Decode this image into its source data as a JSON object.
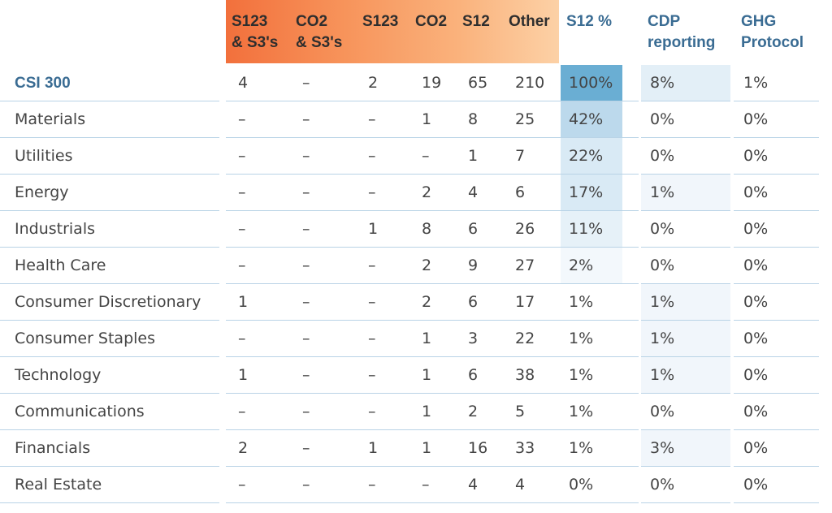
{
  "chart_data": {
    "type": "table",
    "columns": [
      "",
      "S123 & S3's",
      "CO2 & S3's",
      "S123",
      "CO2",
      "S12",
      "Other",
      "S12 %",
      "CDP reporting",
      "GHG Protocol"
    ],
    "header_lines": [
      [
        "S123",
        "& S3's"
      ],
      [
        "CO2",
        "& S3's"
      ],
      [
        "S123"
      ],
      [
        "CO2"
      ],
      [
        "S12"
      ],
      [
        "Other"
      ],
      [
        "S12 %"
      ],
      [
        "CDP",
        "reporting"
      ],
      [
        "GHG",
        "Protocol"
      ]
    ],
    "rows": [
      {
        "label": "CSI 300",
        "values": [
          "4",
          "–",
          "2",
          "19",
          "65",
          "210",
          "100%",
          "8%",
          "1%"
        ],
        "s12_pct": 100,
        "cdp_pct": 8
      },
      {
        "label": "Materials",
        "values": [
          "–",
          "–",
          "–",
          "1",
          "8",
          "25",
          "42%",
          "0%",
          "0%"
        ],
        "s12_pct": 42,
        "cdp_pct": 0
      },
      {
        "label": "Utilities",
        "values": [
          "–",
          "–",
          "–",
          "–",
          "1",
          "7",
          "22%",
          "0%",
          "0%"
        ],
        "s12_pct": 22,
        "cdp_pct": 0
      },
      {
        "label": "Energy",
        "values": [
          "–",
          "–",
          "–",
          "2",
          "4",
          "6",
          "17%",
          "1%",
          "0%"
        ],
        "s12_pct": 17,
        "cdp_pct": 1
      },
      {
        "label": "Industrials",
        "values": [
          "–",
          "–",
          "1",
          "8",
          "6",
          "26",
          "11%",
          "0%",
          "0%"
        ],
        "s12_pct": 11,
        "cdp_pct": 0
      },
      {
        "label": "Health Care",
        "values": [
          "–",
          "–",
          "–",
          "2",
          "9",
          "27",
          "2%",
          "0%",
          "0%"
        ],
        "s12_pct": 2,
        "cdp_pct": 0
      },
      {
        "label": "Consumer Discretionary",
        "values": [
          "1",
          "–",
          "–",
          "2",
          "6",
          "17",
          "1%",
          "1%",
          "0%"
        ],
        "s12_pct": 1,
        "cdp_pct": 1
      },
      {
        "label": "Consumer Staples",
        "values": [
          "–",
          "–",
          "–",
          "1",
          "3",
          "22",
          "1%",
          "1%",
          "0%"
        ],
        "s12_pct": 1,
        "cdp_pct": 1
      },
      {
        "label": "Technology",
        "values": [
          "1",
          "–",
          "–",
          "1",
          "6",
          "38",
          "1%",
          "1%",
          "0%"
        ],
        "s12_pct": 1,
        "cdp_pct": 1
      },
      {
        "label": "Communications",
        "values": [
          "–",
          "–",
          "–",
          "1",
          "2",
          "5",
          "1%",
          "0%",
          "0%"
        ],
        "s12_pct": 1,
        "cdp_pct": 0
      },
      {
        "label": "Financials",
        "values": [
          "2",
          "–",
          "1",
          "1",
          "16",
          "33",
          "1%",
          "3%",
          "0%"
        ],
        "s12_pct": 1,
        "cdp_pct": 3
      },
      {
        "label": "Real Estate",
        "values": [
          "–",
          "–",
          "–",
          "–",
          "4",
          "4",
          "0%",
          "0%",
          "0%"
        ],
        "s12_pct": 0,
        "cdp_pct": 0
      }
    ],
    "colors": {
      "header_gradient": [
        "#f2703c",
        "#fcd1a6"
      ],
      "blue_header": "#3a6c93",
      "index_label": "#3a6c93",
      "separator": "#b9d3e6",
      "heat_strong": "#6aaed3",
      "heat_light": "#eaf3f9"
    }
  }
}
